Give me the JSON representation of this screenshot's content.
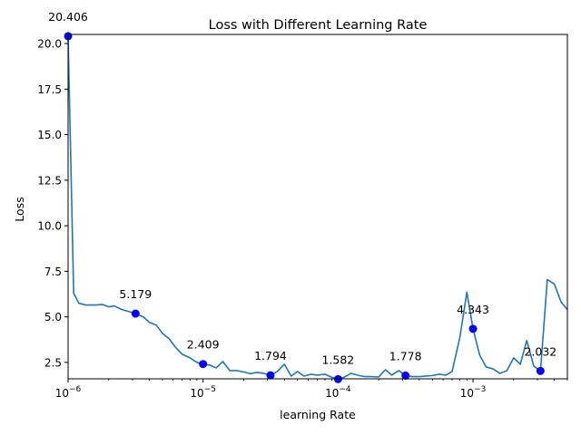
{
  "chart_data": {
    "type": "line",
    "title": "Loss with Different Learning Rate",
    "xlabel": "learning Rate",
    "ylabel": "Loss",
    "xscale": "log",
    "xlim": [
      1e-06,
      0.005
    ],
    "ylim": [
      1.6,
      20.5
    ],
    "grid": false,
    "line_color": "#1f77b4",
    "marker_color": "#0000ff",
    "x_ticks": [
      {
        "value": 1e-06,
        "base": "10",
        "exp": "−6"
      },
      {
        "value": 1e-05,
        "base": "10",
        "exp": "−5"
      },
      {
        "value": 0.0001,
        "base": "10",
        "exp": "−4"
      },
      {
        "value": 0.001,
        "base": "10",
        "exp": "−3"
      }
    ],
    "y_ticks": [
      {
        "value": 2.5,
        "label": "2.5"
      },
      {
        "value": 5.0,
        "label": "5.0"
      },
      {
        "value": 7.5,
        "label": "7.5"
      },
      {
        "value": 10.0,
        "label": "10.0"
      },
      {
        "value": 12.5,
        "label": "12.5"
      },
      {
        "value": 15.0,
        "label": "15.0"
      },
      {
        "value": 17.5,
        "label": "17.5"
      },
      {
        "value": 20.0,
        "label": "20.0"
      }
    ],
    "series": [
      {
        "points": [
          [
            1e-06,
            20.406
          ],
          [
            1.1e-06,
            6.3
          ],
          [
            1.2e-06,
            5.75
          ],
          [
            1.35e-06,
            5.65
          ],
          [
            1.6e-06,
            5.65
          ],
          [
            1.8e-06,
            5.68
          ],
          [
            2e-06,
            5.55
          ],
          [
            2.2e-06,
            5.6
          ],
          [
            2.5e-06,
            5.4
          ],
          [
            2.8e-06,
            5.3
          ],
          [
            3.16e-06,
            5.179
          ],
          [
            3.6e-06,
            5.0
          ],
          [
            4e-06,
            4.7
          ],
          [
            4.5e-06,
            4.55
          ],
          [
            5e-06,
            4.1
          ],
          [
            5.6e-06,
            3.8
          ],
          [
            6.3e-06,
            3.3
          ],
          [
            7e-06,
            2.95
          ],
          [
            8e-06,
            2.75
          ],
          [
            9e-06,
            2.5
          ],
          [
            1e-05,
            2.409
          ],
          [
            1.12e-05,
            2.35
          ],
          [
            1.25e-05,
            2.2
          ],
          [
            1.4e-05,
            2.55
          ],
          [
            1.58e-05,
            2.05
          ],
          [
            1.78e-05,
            2.05
          ],
          [
            2e-05,
            1.98
          ],
          [
            2.24e-05,
            1.88
          ],
          [
            2.5e-05,
            1.95
          ],
          [
            2.82e-05,
            1.9
          ],
          [
            3.16e-05,
            1.794
          ],
          [
            3.55e-05,
            2.0
          ],
          [
            4e-05,
            2.4
          ],
          [
            4.5e-05,
            1.75
          ],
          [
            5e-05,
            2.0
          ],
          [
            5.6e-05,
            1.75
          ],
          [
            6.3e-05,
            1.85
          ],
          [
            7e-05,
            1.8
          ],
          [
            8e-05,
            1.85
          ],
          [
            9e-05,
            1.68
          ],
          [
            0.0001,
            1.582
          ],
          [
            0.000112,
            1.7
          ],
          [
            0.000125,
            1.9
          ],
          [
            0.00014,
            1.8
          ],
          [
            0.000158,
            1.72
          ],
          [
            0.000178,
            1.72
          ],
          [
            0.0002,
            1.7
          ],
          [
            0.000224,
            2.1
          ],
          [
            0.00025,
            1.8
          ],
          [
            0.000282,
            2.05
          ],
          [
            0.000316,
            1.778
          ],
          [
            0.000355,
            1.72
          ],
          [
            0.0004,
            1.72
          ],
          [
            0.00045,
            1.75
          ],
          [
            0.0005,
            1.78
          ],
          [
            0.00056,
            1.85
          ],
          [
            0.00063,
            1.8
          ],
          [
            0.0007,
            2.0
          ],
          [
            0.0008,
            3.9
          ],
          [
            0.0009,
            6.35
          ],
          [
            0.001,
            4.343
          ],
          [
            0.00112,
            2.9
          ],
          [
            0.00125,
            2.25
          ],
          [
            0.0014,
            2.15
          ],
          [
            0.00158,
            1.9
          ],
          [
            0.00178,
            2.05
          ],
          [
            0.002,
            2.75
          ],
          [
            0.00224,
            2.4
          ],
          [
            0.0025,
            3.7
          ],
          [
            0.00282,
            2.3
          ],
          [
            0.00316,
            2.032
          ],
          [
            0.00355,
            7.05
          ],
          [
            0.004,
            6.8
          ],
          [
            0.0045,
            5.8
          ],
          [
            0.005,
            5.4
          ]
        ]
      }
    ],
    "markers": [
      {
        "x": 1e-06,
        "y": 20.406,
        "label": "20.406"
      },
      {
        "x": 3.16e-06,
        "y": 5.179,
        "label": "5.179"
      },
      {
        "x": 1e-05,
        "y": 2.409,
        "label": "2.409"
      },
      {
        "x": 3.16e-05,
        "y": 1.794,
        "label": "1.794"
      },
      {
        "x": 0.0001,
        "y": 1.582,
        "label": "1.582"
      },
      {
        "x": 0.000316,
        "y": 1.778,
        "label": "1.778"
      },
      {
        "x": 0.001,
        "y": 4.343,
        "label": "4.343"
      },
      {
        "x": 0.00316,
        "y": 2.032,
        "label": "2.032"
      }
    ]
  }
}
